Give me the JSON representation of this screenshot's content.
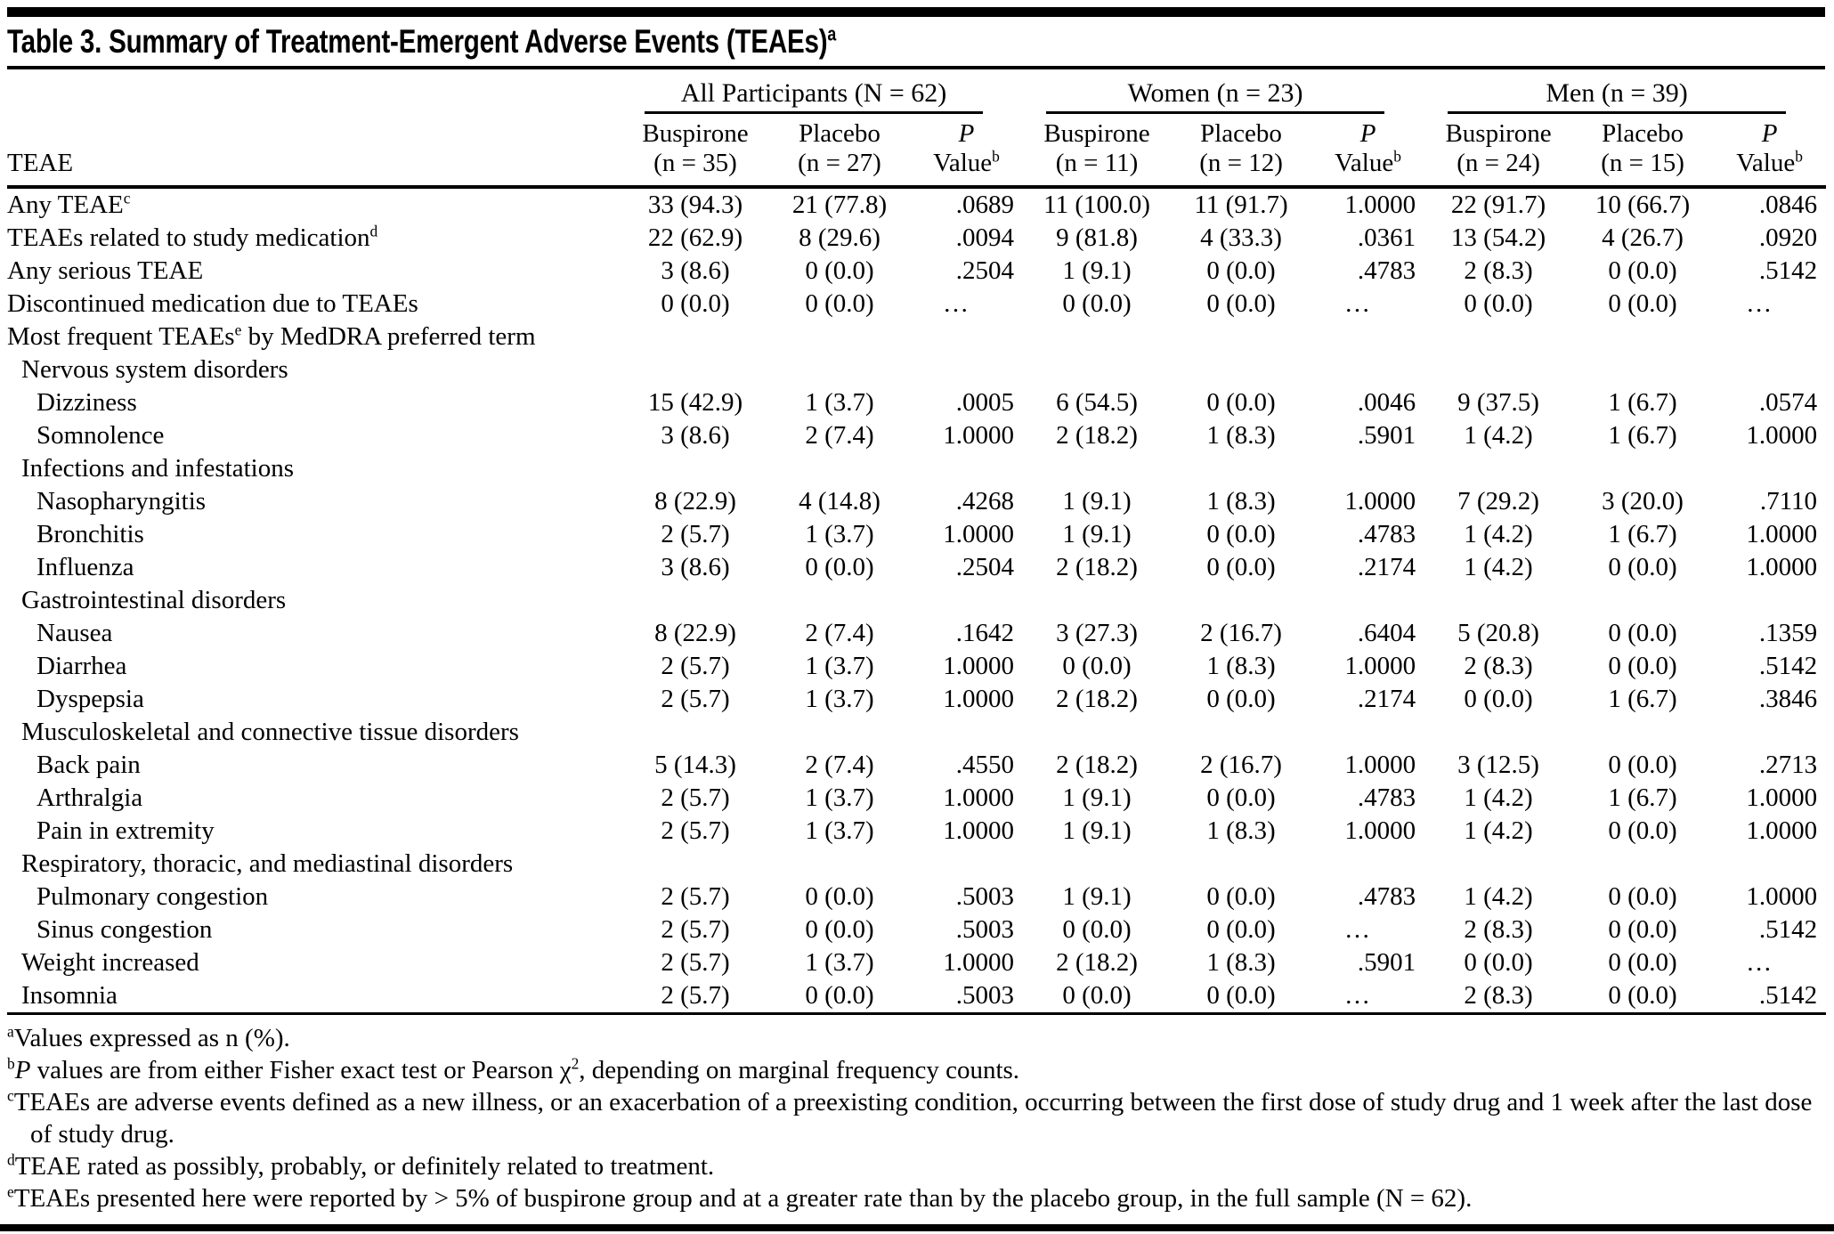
{
  "colors": {
    "background": "#ffffff",
    "text": "#000000",
    "rule": "#000000"
  },
  "title": {
    "text": "Table 3. Summary of Treatment-Emergent Adverse Events (TEAEs)",
    "sup": "a"
  },
  "header": {
    "row_label": "TEAE",
    "groups": [
      {
        "label": "All Participants (N = 62)",
        "subcolumns": [
          {
            "line1": "Buspirone",
            "line2": "(n = 35)"
          },
          {
            "line1": "Placebo",
            "line2": "(n = 27)"
          },
          {
            "line1": "P",
            "italic": true,
            "line2": "Value",
            "sup": "b"
          }
        ]
      },
      {
        "label": "Women (n = 23)",
        "subcolumns": [
          {
            "line1": "Buspirone",
            "line2": "(n = 11)"
          },
          {
            "line1": "Placebo",
            "line2": "(n = 12)"
          },
          {
            "line1": "P",
            "italic": true,
            "line2": "Value",
            "sup": "b"
          }
        ]
      },
      {
        "label": "Men (n = 39)",
        "subcolumns": [
          {
            "line1": "Buspirone",
            "line2": "(n = 24)"
          },
          {
            "line1": "Placebo",
            "line2": "(n = 15)"
          },
          {
            "line1": "P",
            "italic": true,
            "line2": "Value",
            "sup": "b"
          }
        ]
      }
    ]
  },
  "rows": [
    {
      "indent": 0,
      "parts": [
        [
          "Any TEAE",
          "n"
        ],
        [
          "c",
          "sup"
        ]
      ],
      "cells": [
        "33 (94.3)",
        "21 (77.8)",
        ".0689",
        "11 (100.0)",
        "11 (91.7)",
        "1.0000",
        "22 (91.7)",
        "10 (66.7)",
        ".0846"
      ]
    },
    {
      "indent": 0,
      "parts": [
        [
          "TEAEs related to study medication",
          "n"
        ],
        [
          "d",
          "sup"
        ]
      ],
      "cells": [
        "22 (62.9)",
        "8 (29.6)",
        ".0094",
        "9 (81.8)",
        "4 (33.3)",
        ".0361",
        "13 (54.2)",
        "4 (26.7)",
        ".0920"
      ]
    },
    {
      "indent": 0,
      "parts": [
        [
          "Any serious TEAE",
          "n"
        ]
      ],
      "cells": [
        "3 (8.6)",
        "0 (0.0)",
        ".2504",
        "1 (9.1)",
        "0 (0.0)",
        ".4783",
        "2 (8.3)",
        "0 (0.0)",
        ".5142"
      ]
    },
    {
      "indent": 0,
      "parts": [
        [
          "Discontinued medication due to TEAEs",
          "n"
        ]
      ],
      "cells": [
        "0 (0.0)",
        "0 (0.0)",
        "…",
        "0 (0.0)",
        "0 (0.0)",
        "…",
        "0 (0.0)",
        "0 (0.0)",
        "…"
      ]
    },
    {
      "indent": 0,
      "section": true,
      "parts": [
        [
          "Most frequent TEAEs",
          "n"
        ],
        [
          "e",
          "sup"
        ],
        [
          " by MedDRA preferred term",
          "n"
        ]
      ],
      "cells": []
    },
    {
      "indent": 1,
      "section": true,
      "parts": [
        [
          "Nervous system disorders",
          "n"
        ]
      ],
      "cells": []
    },
    {
      "indent": 2,
      "parts": [
        [
          "Dizziness",
          "n"
        ]
      ],
      "cells": [
        "15 (42.9)",
        "1 (3.7)",
        ".0005",
        "6 (54.5)",
        "0 (0.0)",
        ".0046",
        "9 (37.5)",
        "1 (6.7)",
        ".0574"
      ]
    },
    {
      "indent": 2,
      "parts": [
        [
          "Somnolence",
          "n"
        ]
      ],
      "cells": [
        "3 (8.6)",
        "2 (7.4)",
        "1.0000",
        "2 (18.2)",
        "1 (8.3)",
        ".5901",
        "1 (4.2)",
        "1 (6.7)",
        "1.0000"
      ]
    },
    {
      "indent": 1,
      "section": true,
      "parts": [
        [
          "Infections and infestations",
          "n"
        ]
      ],
      "cells": []
    },
    {
      "indent": 2,
      "parts": [
        [
          "Nasopharyngitis",
          "n"
        ]
      ],
      "cells": [
        "8 (22.9)",
        "4 (14.8)",
        ".4268",
        "1 (9.1)",
        "1 (8.3)",
        "1.0000",
        "7 (29.2)",
        "3 (20.0)",
        ".7110"
      ]
    },
    {
      "indent": 2,
      "parts": [
        [
          "Bronchitis",
          "n"
        ]
      ],
      "cells": [
        "2 (5.7)",
        "1 (3.7)",
        "1.0000",
        "1 (9.1)",
        "0 (0.0)",
        ".4783",
        "1 (4.2)",
        "1 (6.7)",
        "1.0000"
      ]
    },
    {
      "indent": 2,
      "parts": [
        [
          "Influenza",
          "n"
        ]
      ],
      "cells": [
        "3 (8.6)",
        "0 (0.0)",
        ".2504",
        "2 (18.2)",
        "0 (0.0)",
        ".2174",
        "1 (4.2)",
        "0 (0.0)",
        "1.0000"
      ]
    },
    {
      "indent": 1,
      "section": true,
      "parts": [
        [
          "Gastrointestinal disorders",
          "n"
        ]
      ],
      "cells": []
    },
    {
      "indent": 2,
      "parts": [
        [
          "Nausea",
          "n"
        ]
      ],
      "cells": [
        "8 (22.9)",
        "2 (7.4)",
        ".1642",
        "3 (27.3)",
        "2 (16.7)",
        ".6404",
        "5 (20.8)",
        "0 (0.0)",
        ".1359"
      ]
    },
    {
      "indent": 2,
      "parts": [
        [
          "Diarrhea",
          "n"
        ]
      ],
      "cells": [
        "2 (5.7)",
        "1 (3.7)",
        "1.0000",
        "0 (0.0)",
        "1 (8.3)",
        "1.0000",
        "2 (8.3)",
        "0 (0.0)",
        ".5142"
      ]
    },
    {
      "indent": 2,
      "parts": [
        [
          "Dyspepsia",
          "n"
        ]
      ],
      "cells": [
        "2 (5.7)",
        "1 (3.7)",
        "1.0000",
        "2 (18.2)",
        "0 (0.0)",
        ".2174",
        "0 (0.0)",
        "1 (6.7)",
        ".3846"
      ]
    },
    {
      "indent": 1,
      "section": true,
      "parts": [
        [
          "Musculoskeletal and connective tissue disorders",
          "n"
        ]
      ],
      "cells": []
    },
    {
      "indent": 2,
      "parts": [
        [
          "Back pain",
          "n"
        ]
      ],
      "cells": [
        "5 (14.3)",
        "2 (7.4)",
        ".4550",
        "2 (18.2)",
        "2 (16.7)",
        "1.0000",
        "3 (12.5)",
        "0 (0.0)",
        ".2713"
      ]
    },
    {
      "indent": 2,
      "parts": [
        [
          "Arthralgia",
          "n"
        ]
      ],
      "cells": [
        "2 (5.7)",
        "1 (3.7)",
        "1.0000",
        "1 (9.1)",
        "0 (0.0)",
        ".4783",
        "1 (4.2)",
        "1 (6.7)",
        "1.0000"
      ]
    },
    {
      "indent": 2,
      "parts": [
        [
          "Pain in extremity",
          "n"
        ]
      ],
      "cells": [
        "2 (5.7)",
        "1 (3.7)",
        "1.0000",
        "1 (9.1)",
        "1 (8.3)",
        "1.0000",
        "1 (4.2)",
        "0 (0.0)",
        "1.0000"
      ]
    },
    {
      "indent": 1,
      "section": true,
      "parts": [
        [
          "Respiratory, thoracic, and mediastinal disorders",
          "n"
        ]
      ],
      "cells": []
    },
    {
      "indent": 2,
      "parts": [
        [
          "Pulmonary congestion",
          "n"
        ]
      ],
      "cells": [
        "2 (5.7)",
        "0 (0.0)",
        ".5003",
        "1 (9.1)",
        "0 (0.0)",
        ".4783",
        "1 (4.2)",
        "0 (0.0)",
        "1.0000"
      ]
    },
    {
      "indent": 2,
      "parts": [
        [
          "Sinus congestion",
          "n"
        ]
      ],
      "cells": [
        "2 (5.7)",
        "0 (0.0)",
        ".5003",
        "0 (0.0)",
        "0 (0.0)",
        "…",
        "2 (8.3)",
        "0 (0.0)",
        ".5142"
      ]
    },
    {
      "indent": 1,
      "parts": [
        [
          "Weight increased",
          "n"
        ]
      ],
      "cells": [
        "2 (5.7)",
        "1 (3.7)",
        "1.0000",
        "2 (18.2)",
        "1 (8.3)",
        ".5901",
        "0 (0.0)",
        "0 (0.0)",
        "…"
      ]
    },
    {
      "indent": 1,
      "parts": [
        [
          "Insomnia",
          "n"
        ]
      ],
      "cells": [
        "2 (5.7)",
        "0 (0.0)",
        ".5003",
        "0 (0.0)",
        "0 (0.0)",
        "…",
        "2 (8.3)",
        "0 (0.0)",
        ".5142"
      ]
    }
  ],
  "footnotes": [
    {
      "sup": "a",
      "parts": [
        [
          "Values expressed as n (%).",
          "n"
        ]
      ]
    },
    {
      "sup": "b",
      "parts": [
        [
          "P",
          "i"
        ],
        [
          " values are from either Fisher exact test or Pearson χ",
          "n"
        ],
        [
          "2",
          "sup"
        ],
        [
          ", depending on marginal frequency counts.",
          "n"
        ]
      ]
    },
    {
      "sup": "c",
      "parts": [
        [
          "TEAEs are adverse events defined as a new illness, or an exacerbation of a preexisting condition, occurring between the first dose of study drug and 1 week after the last dose of study drug.",
          "n"
        ]
      ]
    },
    {
      "sup": "d",
      "parts": [
        [
          "TEAE rated as possibly, probably, or definitely related to treatment.",
          "n"
        ]
      ]
    },
    {
      "sup": "e",
      "parts": [
        [
          "TEAEs presented here were reported by > 5% of buspirone group and at a greater rate than by the placebo group, in the full sample (N = 62).",
          "n"
        ]
      ]
    }
  ]
}
